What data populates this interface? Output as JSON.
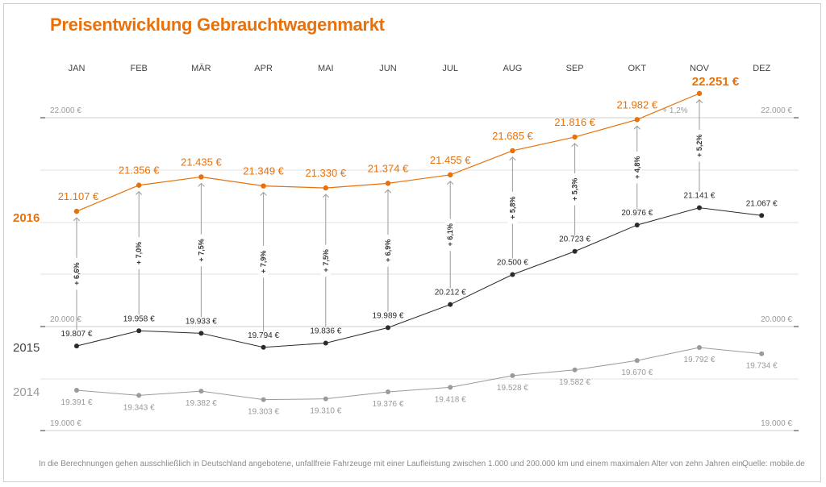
{
  "chart_data": {
    "type": "line",
    "title": "Preisentwicklung Gebrauchtwagenmarkt",
    "categories": [
      "JAN",
      "FEB",
      "MÄR",
      "APR",
      "MAI",
      "JUN",
      "JUL",
      "AUG",
      "SEP",
      "OKT",
      "NOV",
      "DEZ"
    ],
    "y_unit": "€",
    "y_ticks": [
      {
        "value": 22000,
        "label": "22.000 €"
      },
      {
        "value": 20000,
        "label": "20.000 €"
      },
      {
        "value": 19000,
        "label": "19.000 €"
      }
    ],
    "grid": true,
    "series": [
      {
        "name": "2016",
        "color": "#e8710a",
        "values": [
          21107,
          21356,
          21435,
          21349,
          21330,
          21374,
          21455,
          21685,
          21816,
          21982,
          22251,
          null
        ],
        "labels": [
          "21.107 €",
          "21.356 €",
          "21.435 €",
          "21.349 €",
          "21.330 €",
          "21.374 €",
          "21.455 €",
          "21.685 €",
          "21.816 €",
          "21.982 €",
          "22.251 €",
          ""
        ]
      },
      {
        "name": "2015",
        "color": "#2b2b2b",
        "values": [
          19807,
          19958,
          19933,
          19794,
          19836,
          19989,
          20212,
          20500,
          20723,
          20976,
          21141,
          21067
        ],
        "labels": [
          "19.807 €",
          "19.958 €",
          "19.933 €",
          "19.794 €",
          "19.836 €",
          "19.989 €",
          "20.212 €",
          "20.500 €",
          "20.723 €",
          "20.976 €",
          "21.141 €",
          "21.067 €"
        ]
      },
      {
        "name": "2014",
        "color": "#9a9a9a",
        "values": [
          19391,
          19343,
          19382,
          19303,
          19310,
          19376,
          19418,
          19528,
          19582,
          19670,
          19792,
          19734
        ],
        "labels": [
          "19.391 €",
          "19.343 €",
          "19.382 €",
          "19.303 €",
          "19.310 €",
          "19.376 €",
          "19.418 €",
          "19.528 €",
          "19.582 €",
          "19.670 €",
          "19.792 €",
          "19.734 €"
        ]
      }
    ],
    "year_over_year_change": [
      "+ 6,6%",
      "+ 7,0%",
      "+ 7,5%",
      "+ 7,9%",
      "+ 7,5%",
      "+ 6,9%",
      "+ 6,1%",
      "+ 5,8%",
      "+ 5,3%",
      "+ 4,8%",
      "+ 5,2%",
      ""
    ],
    "annotation": "+ 1,2%"
  },
  "footnote": "In die Berechnungen gehen ausschließlich in Deutschland angebotene, unfallfreie Fahrzeuge mit einer Laufleistung zwischen 1.000 und 200.000 km und einem maximalen Alter von zehn Jahren ein.",
  "source": "Quelle: mobile.de"
}
